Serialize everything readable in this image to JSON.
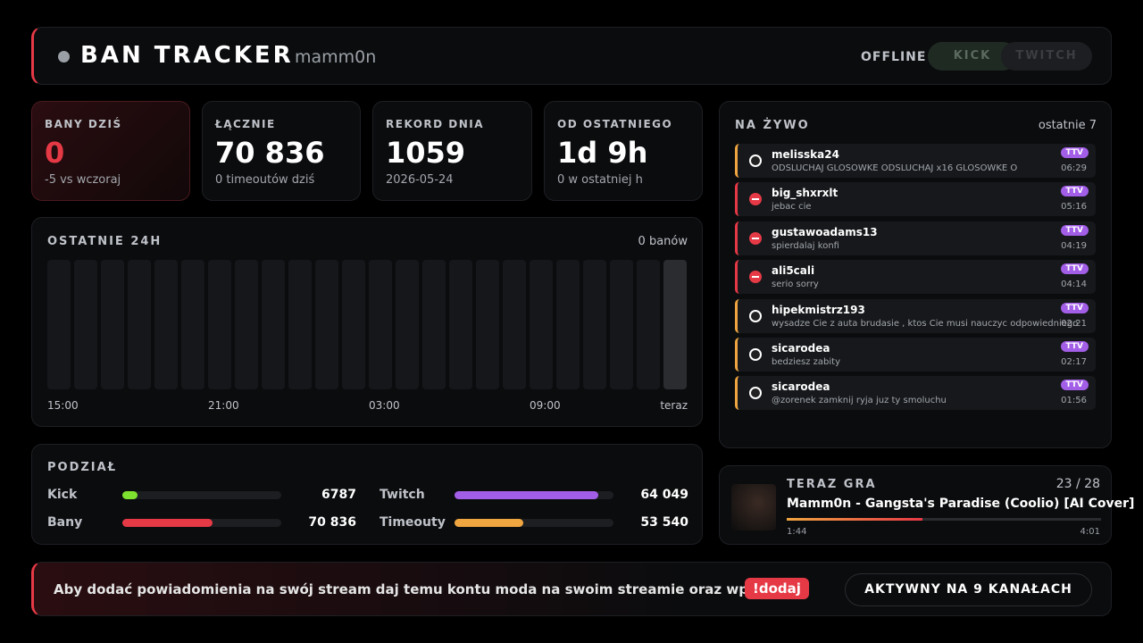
{
  "header": {
    "title": "BAN TRACKER",
    "user": "mamm0n",
    "status": "OFFLINE",
    "platforms": [
      "KICK",
      "TWITCH"
    ]
  },
  "stats": [
    {
      "label": "BANY DZIŚ",
      "value": "0",
      "note": "-5 vs wczoraj"
    },
    {
      "label": "ŁĄCZNIE",
      "value": "70 836",
      "note": "0 timeoutów dziś"
    },
    {
      "label": "REKORD DNIA",
      "value": "1059",
      "note": "2026-05-24"
    },
    {
      "label": "OD OSTATNIEGO",
      "value": "1d 9h",
      "note": "0 w ostatniej h"
    }
  ],
  "last24h": {
    "title": "OSTATNIE 24H",
    "summary": "0 banów",
    "values": [
      0,
      0,
      0,
      0,
      0,
      0,
      0,
      0,
      0,
      0,
      0,
      0,
      0,
      0,
      0,
      0,
      0,
      0,
      0,
      0,
      0,
      0,
      0,
      0
    ],
    "xlabels": [
      "15:00",
      "21:00",
      "03:00",
      "09:00",
      "teraz"
    ]
  },
  "split": {
    "title": "PODZIAŁ",
    "rows": [
      [
        {
          "name": "Kick",
          "value": 6787,
          "label": "6787"
        },
        {
          "name": "Twitch",
          "value": 64049,
          "label": "64 049"
        }
      ],
      [
        {
          "name": "Bany",
          "value": 70836,
          "label": "70 836"
        },
        {
          "name": "Timeouty",
          "value": 53540,
          "label": "53 540"
        }
      ]
    ]
  },
  "live": {
    "title": "NA ŻYWO",
    "subtitle": "ostatnie 7",
    "badge": "TTV",
    "items": [
      {
        "user": "melisska24",
        "message": "ODSLUCHAJ GLOSOWKE ODSLUCHAJ x16 GLOSOWKE O",
        "time": "06:29"
      },
      {
        "user": "big_shxrxlt",
        "message": "jebac cie",
        "time": "05:16"
      },
      {
        "user": "gustawoadams13",
        "message": "spierdalaj konfi",
        "time": "04:19"
      },
      {
        "user": "ali5cali",
        "message": "serio sorry",
        "time": "04:14"
      },
      {
        "user": "hipekmistrz193",
        "message": "wysadze Cie z auta brudasie , ktos Cie musi nauczyc odpowiedniego",
        "time": "02:21"
      },
      {
        "user": "sicarodea",
        "message": "bedziesz zabity",
        "time": "02:17"
      },
      {
        "user": "sicarodea",
        "message": "@zorenek zamknij ryja juz ty smoluchu",
        "time": "01:56"
      }
    ]
  },
  "now_playing": {
    "title": "TERAZ GRA",
    "position": "23 / 28",
    "song": "Mamm0n - Gangsta's Paradise (Coolio) [AI Cover]",
    "elapsed": "1:44",
    "duration": "4:01"
  },
  "footer": {
    "text": "Aby dodać powiadomienia na swój stream daj temu kontu moda na swoim streamie oraz wpisz tu",
    "command": "!dodaj",
    "button": "AKTYWNY NA 9 KANAŁACH"
  }
}
